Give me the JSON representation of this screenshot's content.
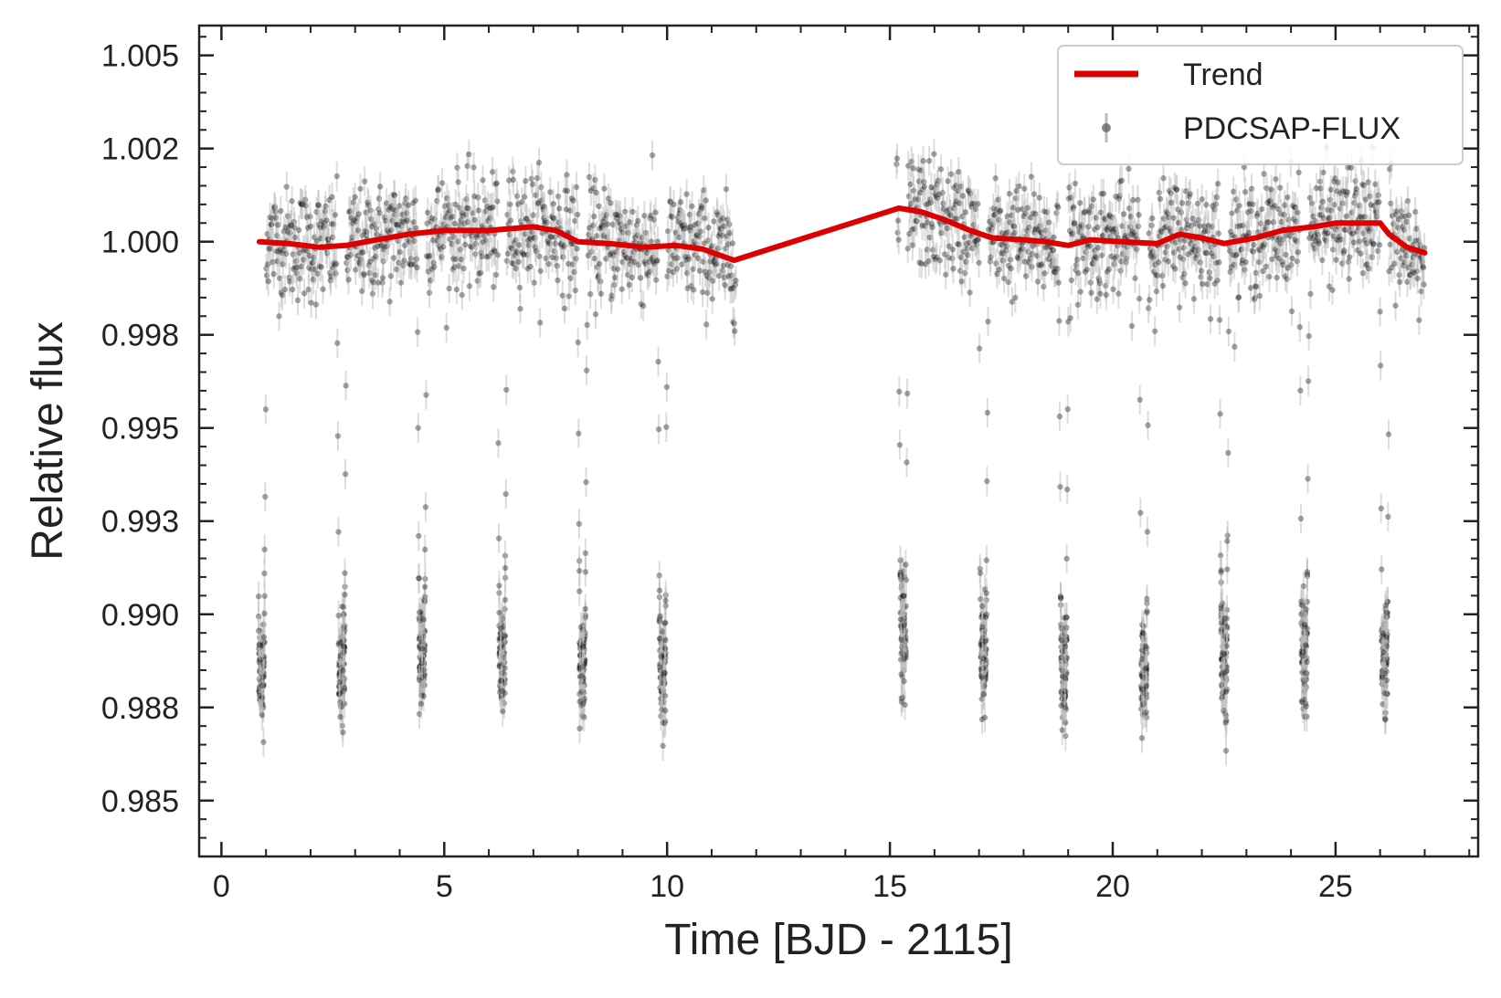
{
  "chart_data": {
    "type": "scatter",
    "title": "",
    "xlabel": "Time [BJD - 2115]",
    "ylabel": "Relative flux",
    "xlim": [
      -0.5,
      28.2
    ],
    "ylim": [
      0.9835,
      1.0058
    ],
    "x_ticks": [
      0,
      5,
      10,
      15,
      20,
      25
    ],
    "x_tick_labels": [
      "0",
      "5",
      "10",
      "15",
      "20",
      "25"
    ],
    "y_ticks": [
      0.985,
      0.9875,
      0.99,
      0.9925,
      0.995,
      0.9975,
      1.0,
      1.0025,
      1.005
    ],
    "y_tick_labels": [
      "0.985",
      "0.988",
      "0.990",
      "0.993",
      "0.995",
      "0.998",
      "1.000",
      "1.002",
      "1.005"
    ],
    "grid": false,
    "legend_position": "top-right",
    "colors": {
      "trend": "#dd0000",
      "points": "#000000",
      "errorbars": "#bbbbbb"
    },
    "observation_segments": [
      [
        0.85,
        11.55
      ],
      [
        15.15,
        27.0
      ]
    ],
    "transits": {
      "centers": [
        0.9,
        2.7,
        4.5,
        6.3,
        8.1,
        9.9,
        15.3,
        17.1,
        18.9,
        20.7,
        22.5,
        24.3,
        26.1
      ],
      "depth_min": 0.9855,
      "depth_core": 0.9885
    },
    "noise_band": {
      "low": 0.9985,
      "high": 1.0015,
      "point_error": 0.0004
    },
    "series": [
      {
        "name": "Trend",
        "style": "line",
        "x": [
          0.85,
          1.5,
          2.2,
          2.8,
          3.5,
          4.2,
          5.0,
          6.0,
          6.5,
          7.0,
          7.5,
          8.0,
          8.7,
          9.5,
          10.2,
          10.8,
          11.5,
          15.2,
          15.7,
          16.2,
          16.8,
          17.3,
          18.0,
          18.5,
          19.0,
          19.5,
          20.2,
          21.0,
          21.5,
          22.0,
          22.5,
          23.2,
          23.8,
          24.5,
          25.0,
          25.5,
          26.0,
          26.2,
          26.6,
          27.0
        ],
        "y": [
          1.0,
          0.99995,
          0.99985,
          0.9999,
          1.00005,
          1.0002,
          1.0003,
          1.0003,
          1.00035,
          1.0004,
          1.0003,
          1.0,
          0.99995,
          0.99985,
          0.9999,
          0.9998,
          0.9995,
          1.0009,
          1.0008,
          1.0006,
          1.0003,
          1.0001,
          1.00005,
          1.0,
          0.9999,
          1.00005,
          1.0,
          0.99995,
          1.0002,
          1.0001,
          0.99995,
          1.0001,
          1.0003,
          1.0004,
          1.0005,
          1.0005,
          1.0005,
          1.0002,
          0.99985,
          0.9997
        ]
      },
      {
        "name": "PDCSAP-FLUX",
        "style": "points-with-errorbars"
      }
    ]
  }
}
